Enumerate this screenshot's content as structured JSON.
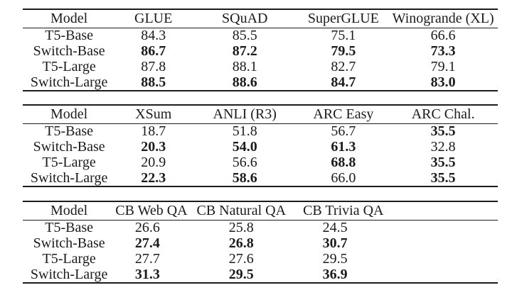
{
  "colors": {
    "background": "#ffffff",
    "text": "#1b1b1b",
    "rule": "#1c1c1c"
  },
  "tables": [
    {
      "headers": [
        "Model",
        "GLUE",
        "SQuAD",
        "SuperGLUE",
        "Winogrande (XL)"
      ],
      "rows": [
        {
          "model": "T5-Base",
          "cells": [
            {
              "value": "84.3",
              "bold": false
            },
            {
              "value": "85.5",
              "bold": false
            },
            {
              "value": "75.1",
              "bold": false
            },
            {
              "value": "66.6",
              "bold": false
            }
          ]
        },
        {
          "model": "Switch-Base",
          "cells": [
            {
              "value": "86.7",
              "bold": true
            },
            {
              "value": "87.2",
              "bold": true
            },
            {
              "value": "79.5",
              "bold": true
            },
            {
              "value": "73.3",
              "bold": true
            }
          ]
        },
        {
          "model": "T5-Large",
          "cells": [
            {
              "value": "87.8",
              "bold": false
            },
            {
              "value": "88.1",
              "bold": false
            },
            {
              "value": "82.7",
              "bold": false
            },
            {
              "value": "79.1",
              "bold": false
            }
          ]
        },
        {
          "model": "Switch-Large",
          "cells": [
            {
              "value": "88.5",
              "bold": true
            },
            {
              "value": "88.6",
              "bold": true
            },
            {
              "value": "84.7",
              "bold": true
            },
            {
              "value": "83.0",
              "bold": true
            }
          ]
        }
      ]
    },
    {
      "headers": [
        "Model",
        "XSum",
        "ANLI (R3)",
        "ARC Easy",
        "ARC Chal."
      ],
      "rows": [
        {
          "model": "T5-Base",
          "cells": [
            {
              "value": "18.7",
              "bold": false
            },
            {
              "value": "51.8",
              "bold": false
            },
            {
              "value": "56.7",
              "bold": false
            },
            {
              "value": "35.5",
              "bold": true
            }
          ]
        },
        {
          "model": "Switch-Base",
          "cells": [
            {
              "value": "20.3",
              "bold": true
            },
            {
              "value": "54.0",
              "bold": true
            },
            {
              "value": "61.3",
              "bold": true
            },
            {
              "value": "32.8",
              "bold": false
            }
          ]
        },
        {
          "model": "T5-Large",
          "cells": [
            {
              "value": "20.9",
              "bold": false
            },
            {
              "value": "56.6",
              "bold": false
            },
            {
              "value": "68.8",
              "bold": true
            },
            {
              "value": "35.5",
              "bold": true
            }
          ]
        },
        {
          "model": "Switch-Large",
          "cells": [
            {
              "value": "22.3",
              "bold": true
            },
            {
              "value": "58.6",
              "bold": true
            },
            {
              "value": "66.0",
              "bold": false
            },
            {
              "value": "35.5",
              "bold": true
            }
          ]
        }
      ]
    },
    {
      "headers": [
        "Model",
        "CB Web QA",
        "CB Natural QA",
        "CB Trivia QA"
      ],
      "rows": [
        {
          "model": "T5-Base",
          "cells": [
            {
              "value": "26.6",
              "bold": false
            },
            {
              "value": "25.8",
              "bold": false
            },
            {
              "value": "24.5",
              "bold": false
            }
          ]
        },
        {
          "model": "Switch-Base",
          "cells": [
            {
              "value": "27.4",
              "bold": true
            },
            {
              "value": "26.8",
              "bold": true
            },
            {
              "value": "30.7",
              "bold": true
            }
          ]
        },
        {
          "model": "T5-Large",
          "cells": [
            {
              "value": "27.7",
              "bold": false
            },
            {
              "value": "27.6",
              "bold": false
            },
            {
              "value": "29.5",
              "bold": false
            }
          ]
        },
        {
          "model": "Switch-Large",
          "cells": [
            {
              "value": "31.3",
              "bold": true
            },
            {
              "value": "29.5",
              "bold": true
            },
            {
              "value": "36.9",
              "bold": true
            }
          ]
        }
      ]
    }
  ]
}
